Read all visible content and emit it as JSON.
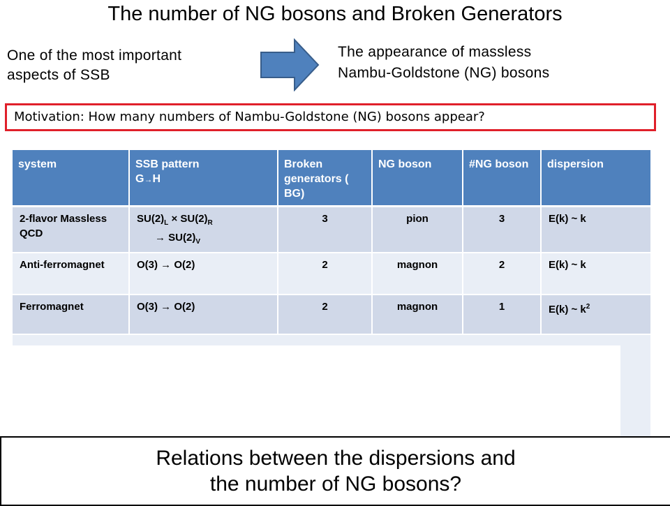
{
  "title": "The number of NG bosons and Broken Generators",
  "left_note": {
    "line1": "One of the most important",
    "line2": "aspects of SSB"
  },
  "arrow_icon": "right-arrow-icon",
  "right_note": {
    "line1": "The appearance of massless",
    "line2": "Nambu-Goldstone (NG) bosons"
  },
  "motivation": "Motivation: How many numbers of Nambu-Goldstone (NG) bosons appear?",
  "table": {
    "headers": {
      "system": "system",
      "ssb_line1": "SSB pattern",
      "ssb_g": "G",
      "ssb_arrow": "→",
      "ssb_h": "H",
      "bg": "Broken generators ( BG)",
      "ng": "NG boson",
      "num_ng": "#NG boson",
      "dispersion": "dispersion"
    },
    "rows": [
      {
        "system": "2-flavor Massless QCD",
        "ssb_line1_a": "SU(2)",
        "ssb_sub_l": "L",
        "ssb_times": " × SU(2)",
        "ssb_sub_r": "R",
        "ssb_line2": "→ SU(2)",
        "ssb_sub_v": "V",
        "bg": "3",
        "ng": "pion",
        "num_ng": "3",
        "dispersion": "E(k) ~ k"
      },
      {
        "system": "Anti-ferromagnet",
        "ssb": "O(3) → O(2)",
        "bg": "2",
        "ng": "magnon",
        "num_ng": "2",
        "dispersion": "E(k) ~ k"
      },
      {
        "system": "Ferromagnet",
        "ssb": "O(3) → O(2)",
        "bg": "2",
        "ng": "magnon",
        "num_ng": "1",
        "dispersion": "E(k) ~ k",
        "dispersion_sup": "2"
      }
    ]
  },
  "bottom": {
    "line1": "Relations between the dispersions and",
    "line2": "the number of NG bosons?"
  },
  "colors": {
    "header_bg": "#4f81bd",
    "row_dark": "#d0d8e8",
    "row_light": "#e9eef6",
    "motivation_border": "#e0202a",
    "arrow_fill": "#4f81bd",
    "arrow_stroke": "#385d8a"
  }
}
